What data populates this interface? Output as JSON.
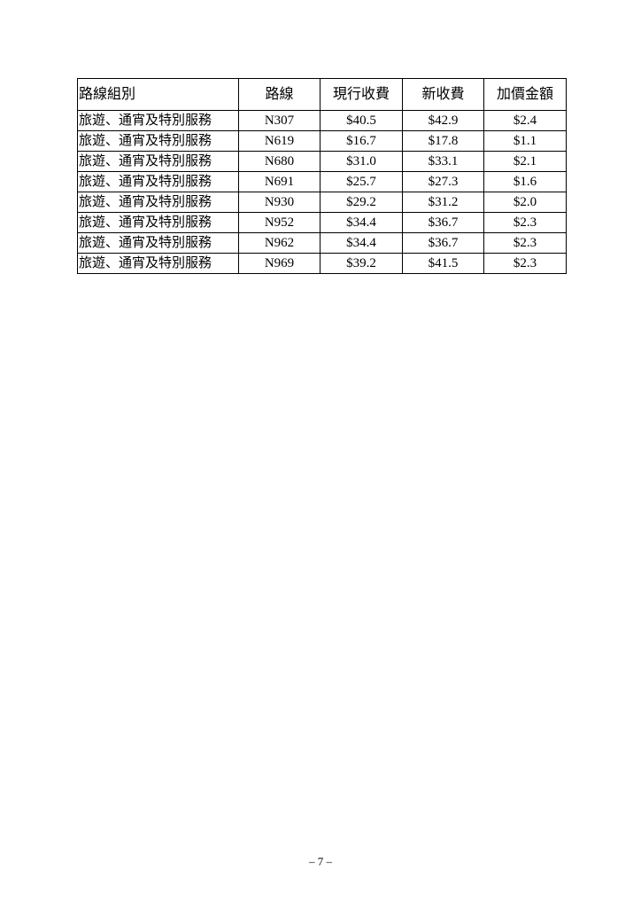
{
  "table": {
    "headers": [
      "路線組別",
      "路線",
      "現行收費",
      "新收費",
      "加價金額"
    ],
    "rows": [
      [
        "旅遊、通宵及特別服務",
        "N307",
        "$40.5",
        "$42.9",
        "$2.4"
      ],
      [
        "旅遊、通宵及特別服務",
        "N619",
        "$16.7",
        "$17.8",
        "$1.1"
      ],
      [
        "旅遊、通宵及特別服務",
        "N680",
        "$31.0",
        "$33.1",
        "$2.1"
      ],
      [
        "旅遊、通宵及特別服務",
        "N691",
        "$25.7",
        "$27.3",
        "$1.6"
      ],
      [
        "旅遊、通宵及特別服務",
        "N930",
        "$29.2",
        "$31.2",
        "$2.0"
      ],
      [
        "旅遊、通宵及特別服務",
        "N952",
        "$34.4",
        "$36.7",
        "$2.3"
      ],
      [
        "旅遊、通宵及特別服務",
        "N962",
        "$34.4",
        "$36.7",
        "$2.3"
      ],
      [
        "旅遊、通宵及特別服務",
        "N969",
        "$39.2",
        "$41.5",
        "$2.3"
      ]
    ]
  },
  "page_number": "– 7 –"
}
